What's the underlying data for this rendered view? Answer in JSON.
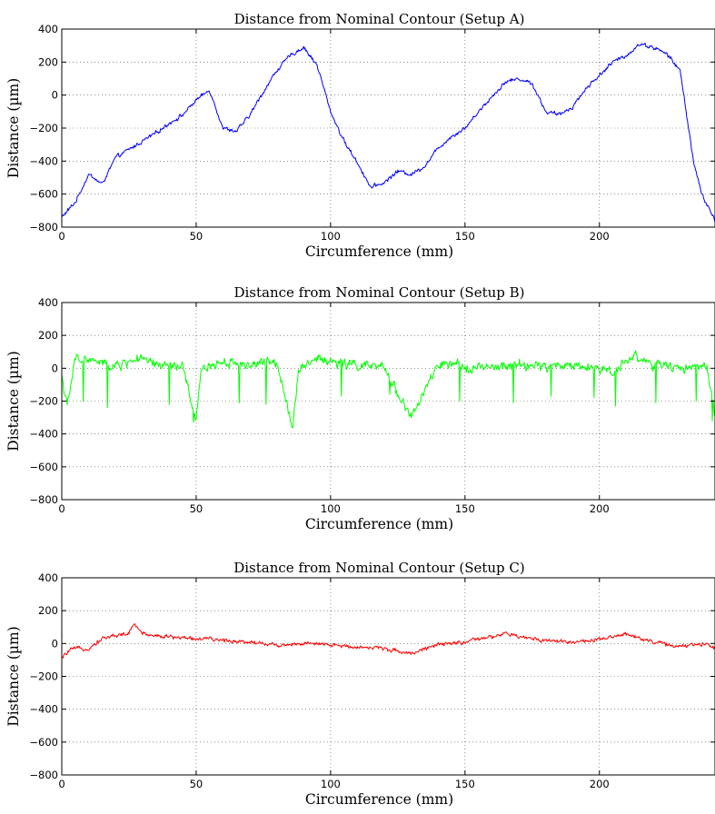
{
  "chart_data": [
    {
      "type": "line",
      "title": "Distance from Nominal Contour (Setup A)",
      "xlabel": "Circumference (mm)",
      "ylabel": "Distance (µm)",
      "xlim": [
        0,
        243
      ],
      "ylim": [
        -800,
        400
      ],
      "xticks": [
        0,
        50,
        100,
        150,
        200
      ],
      "yticks": [
        400,
        200,
        0,
        -200,
        -400,
        -600,
        -800
      ],
      "grid": true,
      "series": [
        {
          "color": "#0000ff",
          "noise": 18,
          "x": [
            0,
            5,
            10,
            15,
            20,
            25,
            30,
            35,
            40,
            45,
            50,
            55,
            60,
            65,
            70,
            75,
            80,
            85,
            90,
            95,
            100,
            105,
            110,
            115,
            120,
            125,
            130,
            135,
            140,
            145,
            150,
            155,
            160,
            165,
            170,
            175,
            180,
            185,
            190,
            195,
            200,
            205,
            210,
            215,
            220,
            225,
            230,
            235,
            238,
            243
          ],
          "y": [
            -740,
            -650,
            -480,
            -540,
            -380,
            -330,
            -280,
            -230,
            -170,
            -120,
            -30,
            30,
            -200,
            -220,
            -120,
            20,
            150,
            240,
            290,
            180,
            -100,
            -280,
            -410,
            -560,
            -530,
            -460,
            -480,
            -430,
            -320,
            -250,
            -200,
            -100,
            -10,
            80,
            100,
            70,
            -100,
            -120,
            -70,
            40,
            120,
            200,
            240,
            310,
            290,
            250,
            150,
            -400,
            -600,
            -760
          ]
        }
      ]
    },
    {
      "type": "line",
      "title": "Distance from Nominal Contour (Setup B)",
      "xlabel": "Circumference (mm)",
      "ylabel": "Distance (µm)",
      "xlim": [
        0,
        243
      ],
      "ylim": [
        -800,
        400
      ],
      "xticks": [
        0,
        50,
        100,
        150,
        200
      ],
      "yticks": [
        400,
        200,
        0,
        -200,
        -400,
        -600,
        -800
      ],
      "grid": true,
      "series": [
        {
          "color": "#00ff00",
          "noise": 45,
          "x": [
            0,
            2,
            5,
            10,
            20,
            28,
            35,
            45,
            50,
            52,
            60,
            70,
            80,
            86,
            88,
            95,
            100,
            110,
            120,
            130,
            140,
            150,
            160,
            170,
            180,
            190,
            200,
            205,
            213,
            220,
            230,
            240,
            243
          ],
          "y": [
            -40,
            -240,
            60,
            50,
            10,
            60,
            20,
            10,
            -330,
            0,
            40,
            20,
            40,
            -360,
            0,
            60,
            40,
            20,
            0,
            -300,
            20,
            10,
            0,
            20,
            10,
            20,
            0,
            -20,
            80,
            20,
            0,
            20,
            -320
          ],
          "spikes": [
            [
              8,
              -200
            ],
            [
              17,
              -240
            ],
            [
              40,
              -220
            ],
            [
              49,
              -330
            ],
            [
              66,
              -210
            ],
            [
              76,
              -220
            ],
            [
              86,
              -360
            ],
            [
              104,
              -170
            ],
            [
              122,
              -160
            ],
            [
              130,
              -300
            ],
            [
              148,
              -200
            ],
            [
              168,
              -210
            ],
            [
              182,
              -170
            ],
            [
              198,
              -180
            ],
            [
              206,
              -230
            ],
            [
              221,
              -210
            ],
            [
              236,
              -200
            ],
            [
              242,
              -320
            ]
          ]
        }
      ]
    },
    {
      "type": "line",
      "title": "Distance from Nominal Contour (Setup C)",
      "xlabel": "Circumference (mm)",
      "ylabel": "Distance (µm)",
      "xlim": [
        0,
        243
      ],
      "ylim": [
        -800,
        400
      ],
      "xticks": [
        0,
        50,
        100,
        150,
        200
      ],
      "yticks": [
        400,
        200,
        0,
        -200,
        -400,
        -600,
        -800
      ],
      "grid": true,
      "series": [
        {
          "color": "#ff0000",
          "noise": 18,
          "x": [
            0,
            3,
            6,
            10,
            15,
            20,
            25,
            27,
            30,
            35,
            40,
            50,
            60,
            70,
            80,
            90,
            100,
            110,
            120,
            130,
            135,
            140,
            150,
            160,
            165,
            170,
            180,
            190,
            200,
            210,
            220,
            230,
            240,
            243
          ],
          "y": [
            -90,
            -40,
            -30,
            -30,
            30,
            50,
            60,
            120,
            60,
            50,
            40,
            30,
            20,
            10,
            -10,
            0,
            -10,
            -20,
            -30,
            -60,
            -30,
            -10,
            10,
            40,
            60,
            40,
            20,
            10,
            20,
            60,
            10,
            -20,
            0,
            -30
          ]
        }
      ]
    }
  ]
}
